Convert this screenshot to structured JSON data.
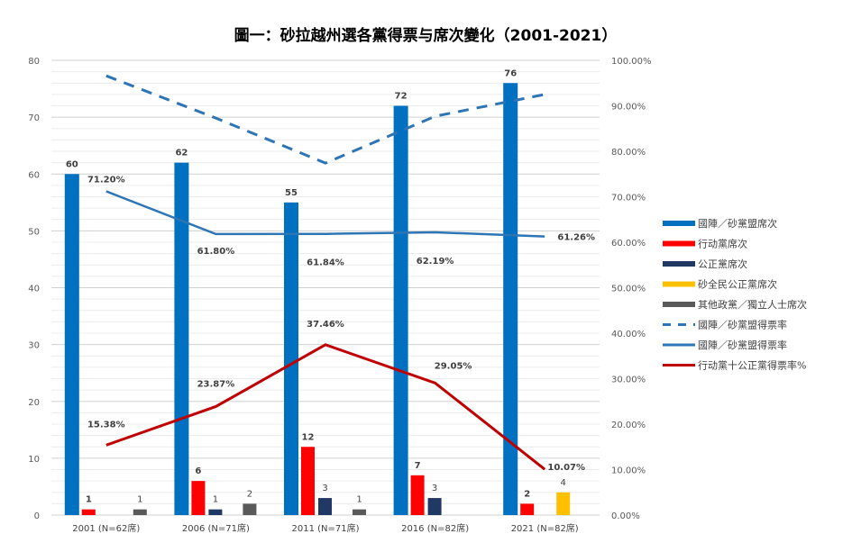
{
  "chart_data": {
    "type": "bar",
    "title": "圖一：砂拉越州選各黨得票与席次變化（2001-2021）",
    "categories": [
      "2001 (N=62席)",
      "2006 (N=71席)",
      "2011 (N=71席)",
      "2016 (N=82席)",
      "2021 (N=82席)"
    ],
    "left_axis": {
      "min": 0,
      "max": 80,
      "ticks": [
        "0",
        "10",
        "20",
        "30",
        "40",
        "50",
        "60",
        "70",
        "80"
      ]
    },
    "right_axis": {
      "min": 0,
      "max": 100,
      "ticks": [
        "0.00%",
        "10.00%",
        "20.00%",
        "30.00%",
        "40.00%",
        "50.00%",
        "60.00%",
        "70.00%",
        "80.00%",
        "90.00%",
        "100.00%"
      ]
    },
    "grid": true,
    "legend_position": "right",
    "bar_series": [
      {
        "name": "國陣／砂黨盟席次",
        "color": "#0070C0",
        "values": [
          60,
          62,
          55,
          72,
          76
        ]
      },
      {
        "name": "行动黨席次",
        "color": "#FF0000",
        "values": [
          1,
          6,
          12,
          7,
          2
        ]
      },
      {
        "name": "公正黨席次",
        "color": "#1F3864",
        "values": [
          null,
          1,
          3,
          3,
          null
        ]
      },
      {
        "name": "砂全民公正黨席次",
        "color": "#FFC000",
        "values": [
          null,
          null,
          null,
          null,
          4
        ]
      },
      {
        "name": "其他政黨／獨立人士席次",
        "color": "#595959",
        "values": [
          1,
          2,
          1,
          null,
          null
        ]
      }
    ],
    "line_series": [
      {
        "name": "國陣／砂黨盟得票率",
        "style": "dashed",
        "color": "#2E75B6",
        "values": [
          96.6,
          87.3,
          77.4,
          87.7,
          92.5
        ],
        "labels": [
          "",
          "",
          "",
          "",
          ""
        ]
      },
      {
        "name": "國陣／砂黨盟得票率",
        "style": "solid",
        "color": "#2E75B6",
        "values": [
          71.2,
          61.8,
          61.84,
          62.19,
          61.26
        ],
        "labels": [
          "71.20%",
          "61.80%",
          "61.84%",
          "62.19%",
          "61.26%"
        ]
      },
      {
        "name": "行动黨十公正黨得票率%",
        "style": "solid",
        "color": "#C00000",
        "values": [
          15.38,
          23.87,
          37.46,
          29.05,
          10.07
        ],
        "labels": [
          "15.38%",
          "23.87%",
          "37.46%",
          "29.05%",
          "10.07%"
        ]
      }
    ]
  }
}
